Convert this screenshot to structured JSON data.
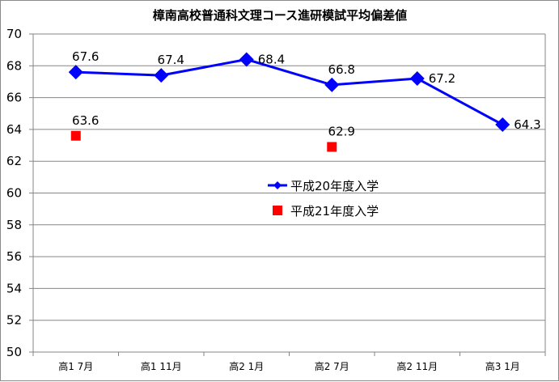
{
  "chart_data": {
    "type": "line",
    "title": "樟南高校普通科文理コース進研模試平均偏差値",
    "categories": [
      "高1 7月",
      "高1 11月",
      "高2 1月",
      "高2 7月",
      "高2 11月",
      "高3 1月"
    ],
    "ylim": [
      50,
      70
    ],
    "yticks": [
      50,
      52,
      54,
      56,
      58,
      60,
      62,
      64,
      66,
      68,
      70
    ],
    "grid": true,
    "legend_position": "center",
    "series": [
      {
        "name": "平成20年度入学",
        "values": [
          67.6,
          67.4,
          68.4,
          66.8,
          67.2,
          64.3
        ],
        "labels": [
          "67.6",
          "67.4",
          "68.4",
          "66.8",
          "67.2",
          "64.3"
        ],
        "color": "#0000ff",
        "marker": "diamond",
        "line": true
      },
      {
        "name": "平成21年度入学",
        "values": [
          63.6,
          null,
          null,
          62.9,
          null,
          null
        ],
        "labels": [
          "63.6",
          "",
          "",
          "62.9",
          "",
          ""
        ],
        "color": "#ff0000",
        "marker": "square",
        "line": false
      }
    ]
  }
}
